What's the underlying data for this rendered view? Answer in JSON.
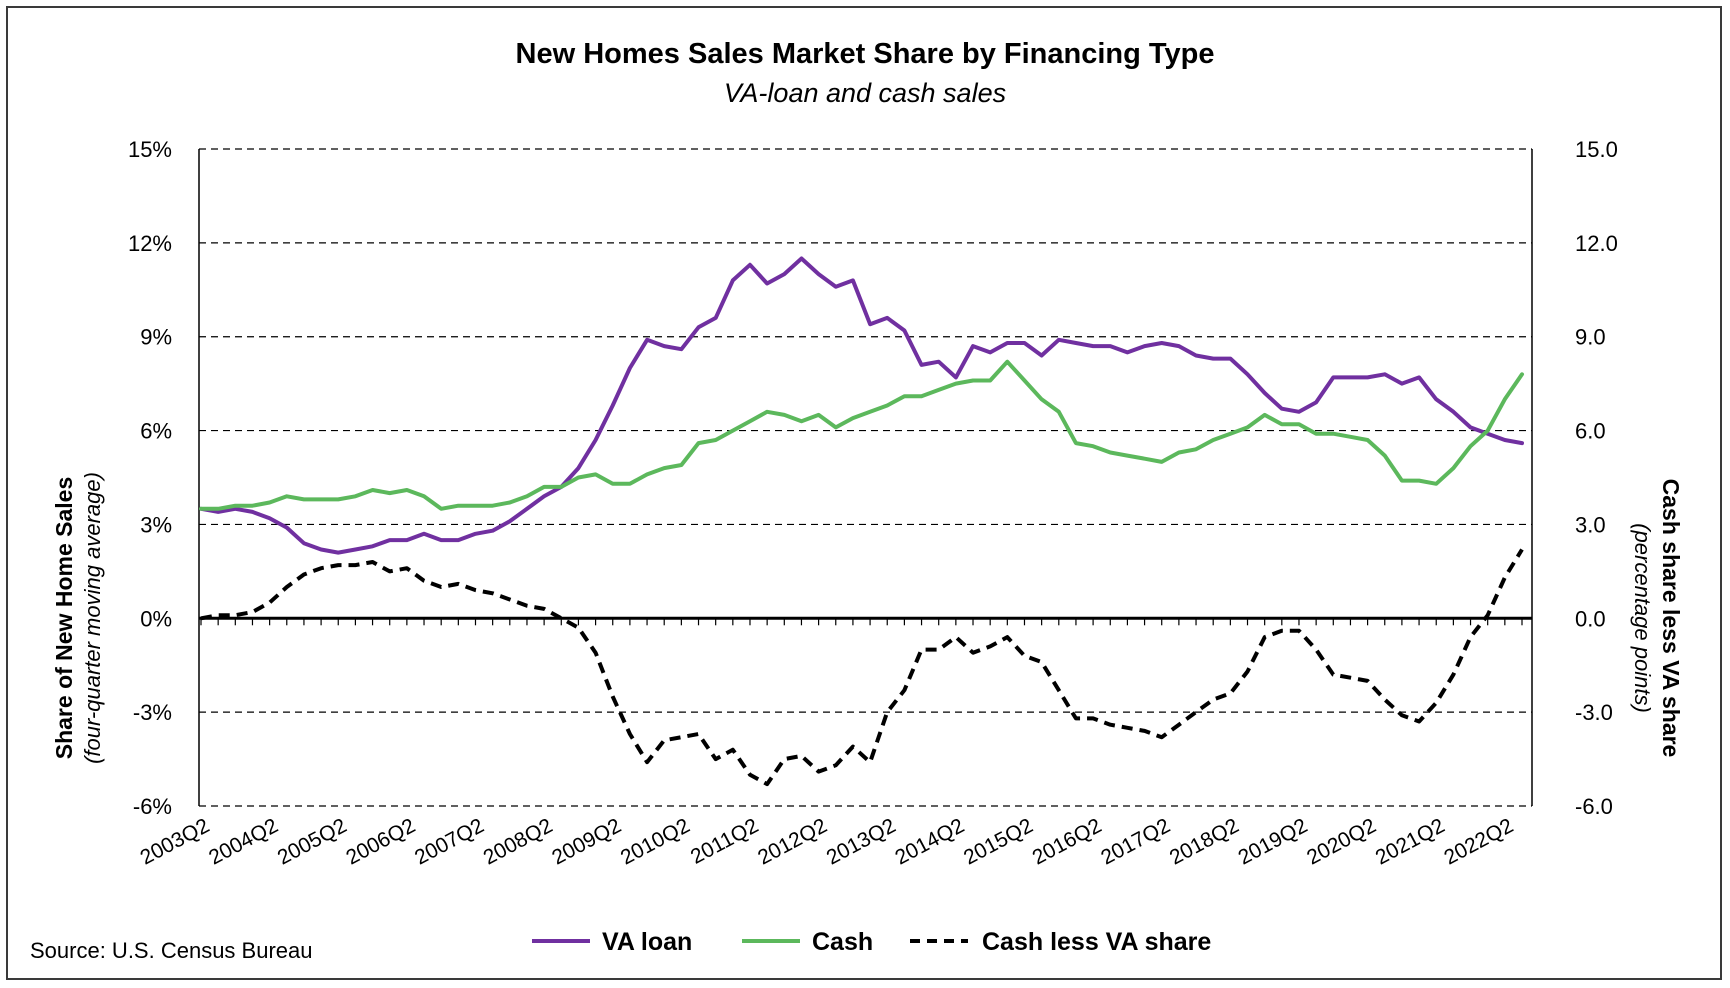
{
  "source": "Source: U.S. Census Bureau",
  "chart_data": {
    "type": "line",
    "title": "New Homes Sales Market Share by Financing Type",
    "subtitle": "VA-loan and cash sales",
    "ylabel": "Share of New Home Sales",
    "ylabel_sub": "(four-quarter moving average)",
    "y2label": "Cash share less VA share",
    "y2label_sub": "(percentage points)",
    "ylim": [
      -6,
      15
    ],
    "y_ticks": [
      "15%",
      "12%",
      "9%",
      "6%",
      "3%",
      "0%",
      "-3%",
      "-6%"
    ],
    "y2_ticks": [
      "15.0",
      "12.0",
      "9.0",
      "6.0",
      "3.0",
      "0.0",
      "-3.0",
      "-6.0"
    ],
    "grid": "horizontal dashed",
    "legend_position": "bottom",
    "x_ticks": [
      "2003Q2",
      "2004Q2",
      "2005Q2",
      "2006Q2",
      "2007Q2",
      "2008Q2",
      "2009Q2",
      "2010Q2",
      "2011Q2",
      "2012Q2",
      "2013Q2",
      "2014Q2",
      "2015Q2",
      "2016Q2",
      "2017Q2",
      "2018Q2",
      "2019Q2",
      "2020Q2",
      "2021Q2",
      "2022Q2"
    ],
    "series": [
      {
        "name": "VA loan",
        "color": "#7030a0",
        "style": "solid",
        "axis": "left",
        "values": [
          3.5,
          3.4,
          3.5,
          3.4,
          3.2,
          2.9,
          2.4,
          2.2,
          2.1,
          2.2,
          2.3,
          2.5,
          2.5,
          2.7,
          2.5,
          2.5,
          2.7,
          2.8,
          3.1,
          3.5,
          3.9,
          4.2,
          4.8,
          5.7,
          6.8,
          8.0,
          8.9,
          8.7,
          8.6,
          9.3,
          9.6,
          10.8,
          11.3,
          10.7,
          11.0,
          11.5,
          11.0,
          10.6,
          10.8,
          9.4,
          9.6,
          9.2,
          8.1,
          8.2,
          7.7,
          8.7,
          8.5,
          8.8,
          8.8,
          8.4,
          8.9,
          8.8,
          8.7,
          8.7,
          8.5,
          8.7,
          8.8,
          8.7,
          8.4,
          8.3,
          8.3,
          7.8,
          7.2,
          6.7,
          6.6,
          6.9,
          7.7,
          7.7,
          7.7,
          7.8,
          7.5,
          7.7,
          7.0,
          6.6,
          6.1,
          5.9,
          5.7,
          5.6
        ]
      },
      {
        "name": "Cash",
        "color": "#5cb85c",
        "style": "solid",
        "axis": "left",
        "values": [
          3.5,
          3.5,
          3.6,
          3.6,
          3.7,
          3.9,
          3.8,
          3.8,
          3.8,
          3.9,
          4.1,
          4.0,
          4.1,
          3.9,
          3.5,
          3.6,
          3.6,
          3.6,
          3.7,
          3.9,
          4.2,
          4.2,
          4.5,
          4.6,
          4.3,
          4.3,
          4.6,
          4.8,
          4.9,
          5.6,
          5.7,
          6.0,
          6.3,
          6.6,
          6.5,
          6.3,
          6.5,
          6.1,
          6.4,
          6.6,
          6.8,
          7.1,
          7.1,
          7.3,
          7.5,
          7.6,
          7.6,
          8.2,
          7.6,
          7.0,
          6.6,
          5.6,
          5.5,
          5.3,
          5.2,
          5.1,
          5.0,
          5.3,
          5.4,
          5.7,
          5.9,
          6.1,
          6.5,
          6.2,
          6.2,
          5.9,
          5.9,
          5.8,
          5.7,
          5.2,
          4.4,
          4.4,
          4.3,
          4.8,
          5.5,
          6.0,
          7.0,
          7.8
        ]
      },
      {
        "name": "Cash less VA share",
        "color": "#000000",
        "style": "dashed",
        "axis": "right",
        "values": [
          0.0,
          0.1,
          0.1,
          0.2,
          0.5,
          1.0,
          1.4,
          1.6,
          1.7,
          1.7,
          1.8,
          1.5,
          1.6,
          1.2,
          1.0,
          1.1,
          0.9,
          0.8,
          0.6,
          0.4,
          0.3,
          0.0,
          -0.3,
          -1.1,
          -2.5,
          -3.7,
          -4.6,
          -3.9,
          -3.8,
          -3.7,
          -4.5,
          -4.2,
          -5.0,
          -5.3,
          -4.5,
          -4.4,
          -4.9,
          -4.7,
          -4.1,
          -4.6,
          -3.0,
          -2.3,
          -1.0,
          -1.0,
          -0.6,
          -1.1,
          -0.9,
          -0.6,
          -1.2,
          -1.4,
          -2.3,
          -3.2,
          -3.2,
          -3.4,
          -3.5,
          -3.6,
          -3.8,
          -3.4,
          -3.0,
          -2.6,
          -2.4,
          -1.7,
          -0.6,
          -0.4,
          -0.4,
          -1.0,
          -1.8,
          -1.9,
          -2.0,
          -2.6,
          -3.1,
          -3.3,
          -2.7,
          -1.8,
          -0.6,
          0.1,
          1.3,
          2.2
        ]
      }
    ]
  }
}
